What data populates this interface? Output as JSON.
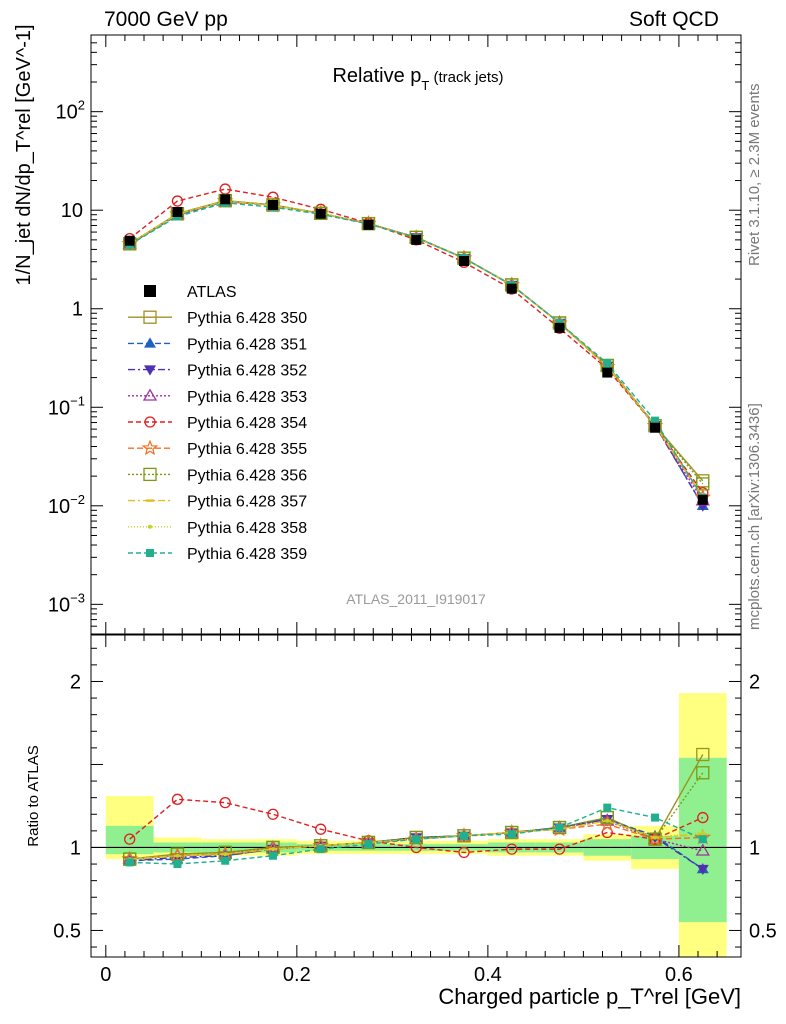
{
  "header": {
    "energy_label": "7000 GeV pp",
    "process_label": "Soft QCD",
    "rivet_label": "Rivet 3.1.10, ≥ 2.3M events",
    "mcplots_label": "mcplots.cern.ch [arXiv:1306.3436]"
  },
  "chart_data": {
    "type": "scatter",
    "title": "Relative p_T (track jets)",
    "analysis_label": "ATLAS_2011_I919017",
    "top_panel": {
      "ylabel": "1/N_jet dN/dp_T^rel [GeV^-1]",
      "yscale": "log",
      "ylim": [
        0.0005,
        600
      ],
      "yticks": [
        {
          "value": 0.001,
          "base": "10",
          "exp": "−3"
        },
        {
          "value": 0.01,
          "base": "10",
          "exp": "−2"
        },
        {
          "value": 0.1,
          "base": "10",
          "exp": "−1"
        },
        {
          "value": 1,
          "base": "1",
          "exp": ""
        },
        {
          "value": 10,
          "base": "10",
          "exp": ""
        },
        {
          "value": 100,
          "base": "10",
          "exp": "2"
        }
      ]
    },
    "bottom_panel": {
      "ylabel": "Ratio to ATLAS",
      "ylim": [
        0.34,
        2.28
      ],
      "yticks": [
        "0.5",
        "1",
        "2"
      ],
      "ytick_values": [
        0.5,
        1,
        2
      ]
    },
    "xlabel": "Charged particle p_T^rel [GeV]",
    "xlim": [
      -0.0155,
      0.665
    ],
    "xticks": [
      "0",
      "0.2",
      "0.4",
      "0.6"
    ],
    "xtick_values": [
      0,
      0.2,
      0.4,
      0.6
    ],
    "x": [
      0.025,
      0.075,
      0.125,
      0.175,
      0.225,
      0.275,
      0.325,
      0.375,
      0.425,
      0.475,
      0.525,
      0.575,
      0.625
    ],
    "data_series": {
      "name": "ATLAS",
      "values": [
        4.9,
        9.6,
        12.9,
        11.3,
        9.2,
        7.1,
        5.0,
        3.05,
        1.6,
        0.64,
        0.225,
        0.062,
        0.0115
      ],
      "band_inner": [
        [
          0.96,
          1.13
        ],
        [
          0.97,
          1.03
        ],
        [
          0.97,
          1.03
        ],
        [
          0.97,
          1.03
        ],
        [
          0.98,
          1.02
        ],
        [
          0.98,
          1.02
        ],
        [
          0.98,
          1.02
        ],
        [
          0.98,
          1.02
        ],
        [
          0.97,
          1.03
        ],
        [
          0.97,
          1.03
        ],
        [
          0.95,
          1.05
        ],
        [
          0.93,
          1.07
        ],
        [
          0.55,
          1.54
        ]
      ],
      "band_outer": [
        [
          0.93,
          1.31
        ],
        [
          0.95,
          1.06
        ],
        [
          0.95,
          1.05
        ],
        [
          0.95,
          1.05
        ],
        [
          0.96,
          1.04
        ],
        [
          0.96,
          1.04
        ],
        [
          0.96,
          1.04
        ],
        [
          0.96,
          1.04
        ],
        [
          0.95,
          1.05
        ],
        [
          0.95,
          1.05
        ],
        [
          0.92,
          1.08
        ],
        [
          0.87,
          1.13
        ],
        [
          0.34,
          1.93
        ]
      ]
    },
    "series": [
      {
        "name": "Pythia 6.428 350",
        "color": "#a09020",
        "marker": "square-open",
        "dash": "",
        "ratio": [
          0.93,
          0.96,
          0.97,
          1.0,
          1.01,
          1.03,
          1.06,
          1.07,
          1.09,
          1.12,
          1.18,
          1.05,
          1.56
        ]
      },
      {
        "name": "Pythia 6.428 351",
        "color": "#2060c0",
        "marker": "triangle-up",
        "dash": "6,3",
        "ratio": [
          0.92,
          0.93,
          0.95,
          0.99,
          1.01,
          1.03,
          1.06,
          1.07,
          1.09,
          1.12,
          1.17,
          1.07,
          0.87
        ]
      },
      {
        "name": "Pythia 6.428 352",
        "color": "#5030b0",
        "marker": "triangle-down",
        "dash": "7,3,2,3",
        "ratio": [
          0.92,
          0.94,
          0.95,
          0.99,
          1.01,
          1.03,
          1.06,
          1.07,
          1.09,
          1.12,
          1.17,
          1.06,
          0.87
        ]
      },
      {
        "name": "Pythia 6.428 353",
        "color": "#a030a0",
        "marker": "triangle-open",
        "dash": "2,2",
        "ratio": [
          0.93,
          0.95,
          0.96,
          1.0,
          1.01,
          1.03,
          1.05,
          1.07,
          1.09,
          1.12,
          1.16,
          1.05,
          0.98
        ]
      },
      {
        "name": "Pythia 6.428 354",
        "color": "#e02020",
        "marker": "circle-open",
        "dash": "5,3",
        "ratio": [
          1.05,
          1.29,
          1.27,
          1.2,
          1.11,
          1.04,
          1.0,
          0.97,
          0.99,
          0.99,
          1.09,
          1.05,
          1.18
        ]
      },
      {
        "name": "Pythia 6.428 355",
        "color": "#f07020",
        "marker": "star-open",
        "dash": "6,3",
        "ratio": [
          0.93,
          0.95,
          0.96,
          0.99,
          1.01,
          1.03,
          1.05,
          1.07,
          1.09,
          1.11,
          1.14,
          1.05,
          1.06
        ]
      },
      {
        "name": "Pythia 6.428 356",
        "color": "#7a9a10",
        "marker": "square-open",
        "dash": "2,2",
        "ratio": [
          0.93,
          0.96,
          0.97,
          1.0,
          1.01,
          1.03,
          1.06,
          1.07,
          1.09,
          1.12,
          1.18,
          1.05,
          1.45
        ]
      },
      {
        "name": "Pythia 6.428 357",
        "color": "#e0c020",
        "marker": "dash",
        "dash": "7,3,2,3",
        "ratio": [
          0.93,
          0.95,
          0.96,
          0.99,
          1.01,
          1.03,
          1.05,
          1.07,
          1.09,
          1.11,
          1.16,
          1.06,
          1.08
        ]
      },
      {
        "name": "Pythia 6.428 358",
        "color": "#c8d020",
        "marker": "dot",
        "dash": "1,2",
        "ratio": [
          0.93,
          0.95,
          0.96,
          0.99,
          1.01,
          1.03,
          1.05,
          1.07,
          1.09,
          1.11,
          1.16,
          1.06,
          1.09
        ]
      },
      {
        "name": "Pythia 6.428 359",
        "color": "#20b090",
        "marker": "square-small",
        "dash": "5,3",
        "ratio": [
          0.91,
          0.9,
          0.92,
          0.95,
          0.99,
          1.02,
          1.05,
          1.07,
          1.08,
          1.12,
          1.24,
          1.18,
          1.05
        ]
      }
    ]
  }
}
